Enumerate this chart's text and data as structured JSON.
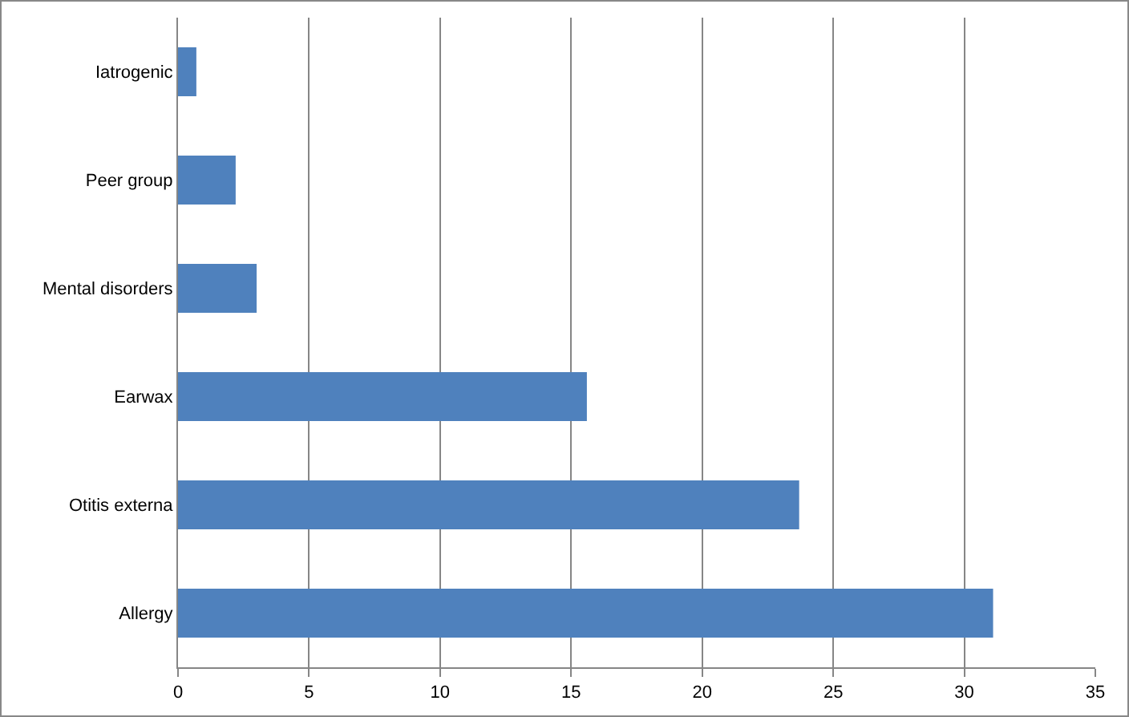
{
  "chart_data": {
    "type": "bar",
    "orientation": "horizontal",
    "categories": [
      "Iatrogenic",
      "Peer group",
      "Mental disorders",
      "Earwax",
      "Otitis externa",
      "Allergy"
    ],
    "values": [
      0.7,
      2.2,
      3.0,
      15.6,
      23.7,
      31.1
    ],
    "color": "#4f81bd",
    "xlim": [
      0,
      35
    ],
    "xticks": [
      0,
      5,
      10,
      15,
      20,
      25,
      30,
      35
    ],
    "grid": "x"
  }
}
